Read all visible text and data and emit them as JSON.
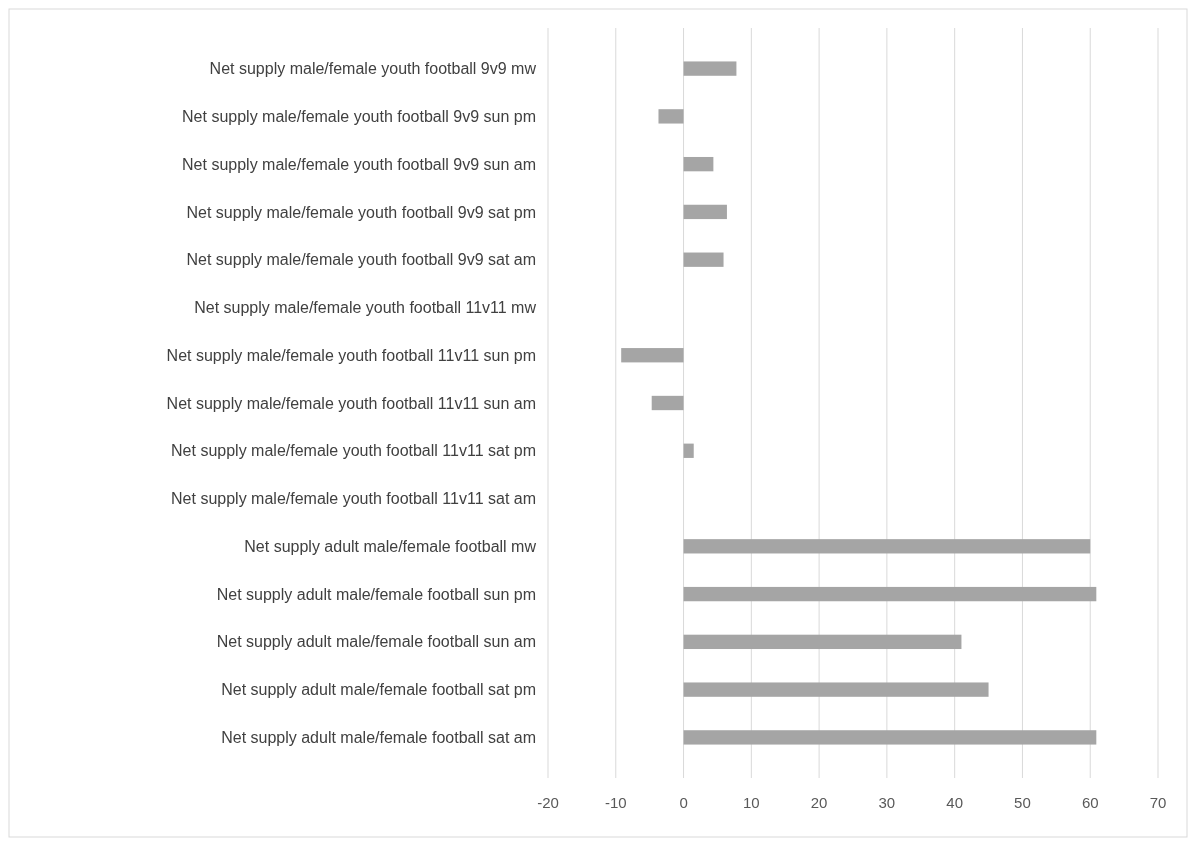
{
  "chart_data": {
    "type": "bar",
    "orientation": "horizontal",
    "categories": [
      "Net supply male/female youth football 9v9 mw",
      "Net supply male/female youth football 9v9 sun pm",
      "Net supply male/female youth football 9v9 sun am",
      "Net supply male/female youth football 9v9 sat pm",
      "Net supply male/female youth football 9v9 sat am",
      "Net supply male/female youth football 11v11 mw",
      "Net supply male/female youth football 11v11 sun pm",
      "Net supply male/female youth football 11v11 sun am",
      "Net supply male/female youth football 11v11 sat pm",
      "Net supply male/female youth football 11v11 sat am",
      "Net supply adult male/female football mw",
      "Net supply adult male/female football sun pm",
      "Net supply adult male/female football sun am",
      "Net supply adult male/female football sat pm",
      "Net supply adult male/female football sat am"
    ],
    "values": [
      7.8,
      -3.7,
      4.4,
      6.4,
      5.9,
      0,
      -9.2,
      -4.7,
      1.5,
      0,
      60,
      60.9,
      41,
      45,
      60.9
    ],
    "color": "#a5a5a5",
    "xlim": [
      -20,
      70
    ],
    "xticks": [
      -20,
      -10,
      0,
      10,
      20,
      30,
      40,
      50,
      60,
      70
    ],
    "grid": "x"
  }
}
